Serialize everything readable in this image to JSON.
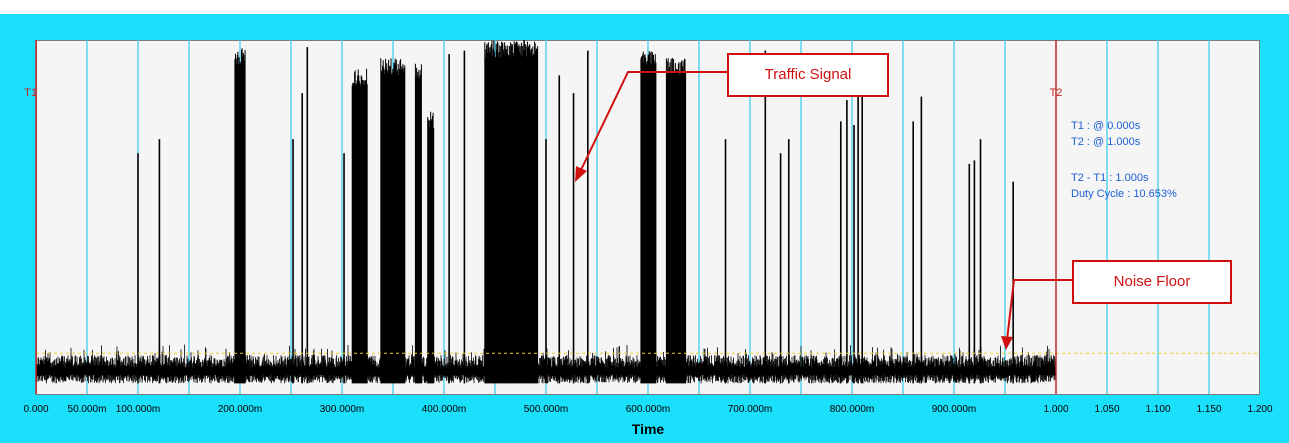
{
  "chart_data": {
    "type": "line",
    "xlabel": "Time",
    "x_unit": "s",
    "xlim": [
      0,
      1.2
    ],
    "x_ticks": [
      0,
      0.05,
      0.1,
      0.15,
      0.2,
      0.25,
      0.3,
      0.35,
      0.4,
      0.45,
      0.5,
      0.55,
      0.6,
      0.65,
      0.7,
      0.75,
      0.8,
      0.85,
      0.9,
      0.95,
      1.0,
      1.05,
      1.1,
      1.15,
      1.2
    ],
    "x_tick_labels": [
      "0.000",
      "50.000m",
      "100.000m",
      "",
      "200.000m",
      "",
      "300.000m",
      "",
      "400.000m",
      "",
      "500.000m",
      "",
      "600.000m",
      "",
      "700.000m",
      "",
      "800.000m",
      "",
      "900.000m",
      "",
      "1.000",
      "1.050",
      "1.100",
      "1.150",
      "1.200"
    ],
    "vertical_grid": true,
    "grid_color": "#33ccee",
    "trace_color": "#000000",
    "signal_end": 1.0,
    "noise_floor_band": [
      0.03,
      0.11
    ],
    "noise_floor_threshold": 0.115,
    "threshold_color": "#e8d020",
    "burst_regions": [
      {
        "start": 0.195,
        "end": 0.205,
        "peak": 0.98
      },
      {
        "start": 0.31,
        "end": 0.325,
        "peak": 0.92
      },
      {
        "start": 0.338,
        "end": 0.362,
        "peak": 0.95
      },
      {
        "start": 0.372,
        "end": 0.378,
        "peak": 0.94
      },
      {
        "start": 0.384,
        "end": 0.39,
        "peak": 0.8
      },
      {
        "start": 0.44,
        "end": 0.492,
        "peak": 1.0
      },
      {
        "start": 0.593,
        "end": 0.608,
        "peak": 0.98
      },
      {
        "start": 0.618,
        "end": 0.637,
        "peak": 0.95
      }
    ],
    "spikes": [
      {
        "x": 0.1,
        "peak": 0.68
      },
      {
        "x": 0.121,
        "peak": 0.72
      },
      {
        "x": 0.252,
        "peak": 0.72
      },
      {
        "x": 0.261,
        "peak": 0.85
      },
      {
        "x": 0.266,
        "peak": 0.98
      },
      {
        "x": 0.302,
        "peak": 0.68
      },
      {
        "x": 0.405,
        "peak": 0.96
      },
      {
        "x": 0.42,
        "peak": 0.97
      },
      {
        "x": 0.5,
        "peak": 0.72
      },
      {
        "x": 0.513,
        "peak": 0.9
      },
      {
        "x": 0.527,
        "peak": 0.85
      },
      {
        "x": 0.541,
        "peak": 0.97
      },
      {
        "x": 0.676,
        "peak": 0.72
      },
      {
        "x": 0.715,
        "peak": 0.97
      },
      {
        "x": 0.73,
        "peak": 0.68
      },
      {
        "x": 0.738,
        "peak": 0.72
      },
      {
        "x": 0.789,
        "peak": 0.77
      },
      {
        "x": 0.795,
        "peak": 0.83
      },
      {
        "x": 0.802,
        "peak": 0.76
      },
      {
        "x": 0.806,
        "peak": 0.94
      },
      {
        "x": 0.81,
        "peak": 0.92
      },
      {
        "x": 0.86,
        "peak": 0.77
      },
      {
        "x": 0.868,
        "peak": 0.84
      },
      {
        "x": 0.915,
        "peak": 0.65
      },
      {
        "x": 0.92,
        "peak": 0.66
      },
      {
        "x": 0.926,
        "peak": 0.72
      },
      {
        "x": 0.958,
        "peak": 0.6
      }
    ],
    "cursors": [
      {
        "name": "T1",
        "label": "T1",
        "x": 0.0,
        "color": "#cc2020"
      },
      {
        "name": "T2",
        "label": "T2",
        "x": 1.0,
        "color": "#cc2020"
      }
    ]
  },
  "measurements": {
    "t1": "T1 : @ 0.000s",
    "t2": "T2 : @ 1.000s",
    "delta": "T2 - T1 : 1.000s",
    "duty": "Duty Cycle : 10.653%"
  },
  "annotations": {
    "traffic": "Traffic Signal",
    "noise": "Noise Floor",
    "border_color": "#d01010"
  },
  "colors": {
    "frame": "#1ae0fb",
    "plot_bg": "#f5f5f5",
    "info_text": "#1f5fd6"
  }
}
